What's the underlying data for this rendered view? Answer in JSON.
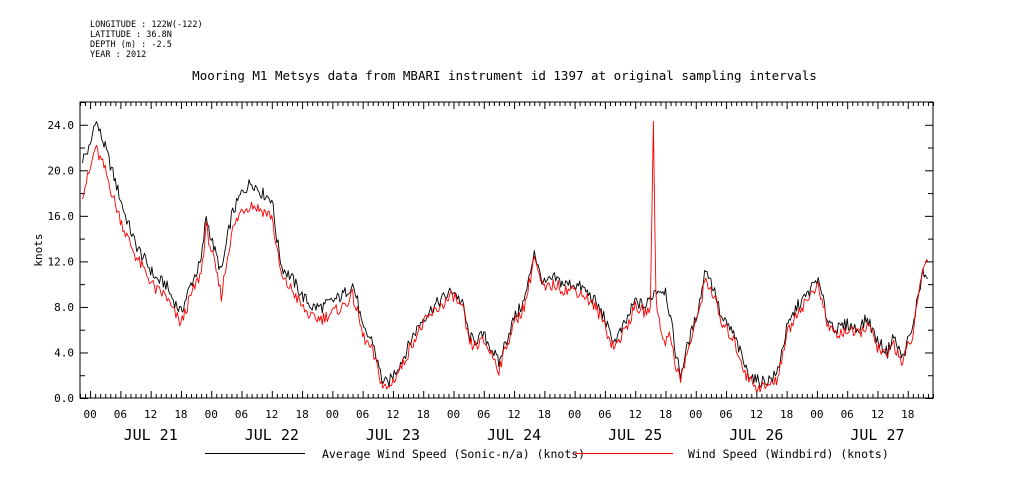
{
  "meta": {
    "longitude": "LONGITUDE : 122W(-122)",
    "latitude": "LATITUDE : 36.8N",
    "depth": "DEPTH (m) : -2.5",
    "year": "YEAR : 2012"
  },
  "chart_data": {
    "type": "line",
    "title": "Mooring M1 Metsys data from MBARI instrument id 1397 at original sampling intervals",
    "ylabel": "knots",
    "xlabel": "",
    "ylim": [
      0,
      26
    ],
    "xlim_hours": [
      -2,
      167
    ],
    "grid": false,
    "legend_position": "bottom",
    "y_ticks": [
      "0.0",
      "4.0",
      "8.0",
      "12.0",
      "16.0",
      "20.0",
      "24.0"
    ],
    "x_tick_labels": [
      "00",
      "06",
      "12",
      "18",
      "00",
      "06",
      "12",
      "18",
      "00",
      "06",
      "12",
      "18",
      "00",
      "06",
      "12",
      "18",
      "00",
      "06",
      "12",
      "18",
      "00",
      "06",
      "12",
      "18",
      "00",
      "06",
      "12",
      "18"
    ],
    "day_labels": [
      "JUL 21",
      "JUL 22",
      "JUL 23",
      "JUL 24",
      "JUL 25",
      "JUL 26",
      "JUL 27"
    ],
    "x_unit": "hours since JUL 21 00:00",
    "series": [
      {
        "name": "Average Wind Speed (Sonic-n/a) (knots)",
        "color": "#000000",
        "points": [
          [
            -1.5,
            21
          ],
          [
            0,
            22
          ],
          [
            1,
            24.5
          ],
          [
            3,
            22
          ],
          [
            5,
            19
          ],
          [
            7,
            16
          ],
          [
            9,
            13.5
          ],
          [
            11,
            12
          ],
          [
            13,
            10.5
          ],
          [
            15,
            10
          ],
          [
            16,
            9
          ],
          [
            18,
            7.5
          ],
          [
            20,
            10
          ],
          [
            22,
            12
          ],
          [
            23,
            16
          ],
          [
            24,
            14
          ],
          [
            26,
            11
          ],
          [
            28,
            16
          ],
          [
            30,
            18
          ],
          [
            32,
            19
          ],
          [
            34,
            18
          ],
          [
            36,
            17.5
          ],
          [
            37,
            14
          ],
          [
            38,
            11.5
          ],
          [
            40,
            10.5
          ],
          [
            42,
            9
          ],
          [
            44,
            8
          ],
          [
            46,
            8
          ],
          [
            48,
            8.5
          ],
          [
            50,
            9
          ],
          [
            52,
            10
          ],
          [
            53,
            8.5
          ],
          [
            54,
            6
          ],
          [
            56,
            5
          ],
          [
            57,
            3
          ],
          [
            58,
            1.5
          ],
          [
            59,
            1.2
          ],
          [
            60,
            2
          ],
          [
            62,
            3.5
          ],
          [
            64,
            5.5
          ],
          [
            66,
            7
          ],
          [
            68,
            8
          ],
          [
            70,
            8.8
          ],
          [
            72,
            9.5
          ],
          [
            74,
            8
          ],
          [
            75,
            5.5
          ],
          [
            76,
            5
          ],
          [
            78,
            5.5
          ],
          [
            80,
            4
          ],
          [
            81,
            3
          ],
          [
            82,
            4.5
          ],
          [
            84,
            7
          ],
          [
            86,
            8.5
          ],
          [
            87,
            10.5
          ],
          [
            88,
            13
          ],
          [
            89,
            11
          ],
          [
            90,
            10
          ],
          [
            92,
            10.5
          ],
          [
            94,
            10
          ],
          [
            96,
            10
          ],
          [
            98,
            9.5
          ],
          [
            100,
            8.5
          ],
          [
            102,
            7
          ],
          [
            103,
            5.5
          ],
          [
            104,
            5
          ],
          [
            106,
            6.5
          ],
          [
            108,
            8.5
          ],
          [
            110,
            8
          ],
          [
            112,
            9.5
          ],
          [
            114,
            9.5
          ],
          [
            115,
            7
          ],
          [
            116,
            4
          ],
          [
            117,
            2
          ],
          [
            118,
            4
          ],
          [
            120,
            7
          ],
          [
            121,
            9
          ],
          [
            122,
            11.5
          ],
          [
            124,
            9
          ],
          [
            125,
            7
          ],
          [
            127,
            6
          ],
          [
            128,
            5
          ],
          [
            130,
            2.5
          ],
          [
            132,
            1.5
          ],
          [
            134,
            1.5
          ],
          [
            136,
            2
          ],
          [
            137,
            4
          ],
          [
            138,
            6
          ],
          [
            140,
            8
          ],
          [
            142,
            9
          ],
          [
            144,
            10.5
          ],
          [
            145,
            9
          ],
          [
            146,
            7
          ],
          [
            148,
            6
          ],
          [
            150,
            6.5
          ],
          [
            152,
            6
          ],
          [
            154,
            7
          ],
          [
            156,
            5
          ],
          [
            158,
            4
          ],
          [
            159,
            5.5
          ],
          [
            160,
            4.5
          ],
          [
            161,
            3.5
          ],
          [
            162,
            5
          ],
          [
            163,
            6
          ],
          [
            164,
            9
          ],
          [
            165,
            11
          ],
          [
            166,
            10.5
          ]
        ]
      },
      {
        "name": "Wind Speed (Windbird) (knots)",
        "color": "#ff0000",
        "points": [
          [
            -1.5,
            18
          ],
          [
            0,
            20
          ],
          [
            1,
            22
          ],
          [
            3,
            20
          ],
          [
            5,
            17
          ],
          [
            7,
            14.5
          ],
          [
            9,
            12.5
          ],
          [
            11,
            11
          ],
          [
            13,
            9.5
          ],
          [
            15,
            9
          ],
          [
            16,
            8
          ],
          [
            18,
            6.5
          ],
          [
            20,
            9
          ],
          [
            22,
            11
          ],
          [
            23,
            15
          ],
          [
            24,
            13
          ],
          [
            26,
            9
          ],
          [
            28,
            14.5
          ],
          [
            30,
            16.5
          ],
          [
            32,
            17
          ],
          [
            34,
            16.5
          ],
          [
            36,
            16
          ],
          [
            37,
            13
          ],
          [
            38,
            10.5
          ],
          [
            40,
            9.5
          ],
          [
            42,
            8
          ],
          [
            44,
            7
          ],
          [
            46,
            7
          ],
          [
            48,
            7.5
          ],
          [
            50,
            8
          ],
          [
            52,
            9
          ],
          [
            53,
            7.5
          ],
          [
            54,
            5.5
          ],
          [
            56,
            4
          ],
          [
            57,
            2.5
          ],
          [
            58,
            1
          ],
          [
            59,
            0.8
          ],
          [
            60,
            1.5
          ],
          [
            62,
            3
          ],
          [
            64,
            5
          ],
          [
            66,
            6.5
          ],
          [
            68,
            7.5
          ],
          [
            70,
            8.3
          ],
          [
            72,
            9
          ],
          [
            74,
            7.5
          ],
          [
            75,
            5
          ],
          [
            76,
            4.5
          ],
          [
            78,
            5
          ],
          [
            80,
            3.5
          ],
          [
            81,
            2.5
          ],
          [
            82,
            4
          ],
          [
            84,
            6.5
          ],
          [
            86,
            8
          ],
          [
            87,
            10
          ],
          [
            88,
            12.5
          ],
          [
            89,
            10.5
          ],
          [
            90,
            9.5
          ],
          [
            92,
            10
          ],
          [
            94,
            9.5
          ],
          [
            96,
            9.5
          ],
          [
            98,
            9
          ],
          [
            100,
            8
          ],
          [
            102,
            6.5
          ],
          [
            103,
            5
          ],
          [
            104,
            4.5
          ],
          [
            106,
            6
          ],
          [
            108,
            8
          ],
          [
            110,
            7.5
          ],
          [
            111,
            8
          ],
          [
            111.6,
            24.3
          ],
          [
            112.1,
            9
          ],
          [
            113,
            6
          ],
          [
            114,
            5
          ],
          [
            115,
            5.5
          ],
          [
            116,
            3
          ],
          [
            117,
            1.5
          ],
          [
            118,
            3.5
          ],
          [
            120,
            6.5
          ],
          [
            121,
            8.5
          ],
          [
            122,
            10.5
          ],
          [
            124,
            8.5
          ],
          [
            125,
            6.5
          ],
          [
            127,
            5.5
          ],
          [
            128,
            4.5
          ],
          [
            130,
            2
          ],
          [
            132,
            1
          ],
          [
            134,
            1
          ],
          [
            136,
            1.5
          ],
          [
            137,
            3.5
          ],
          [
            138,
            5.5
          ],
          [
            140,
            7.5
          ],
          [
            142,
            8.5
          ],
          [
            144,
            10
          ],
          [
            145,
            8.5
          ],
          [
            146,
            6.5
          ],
          [
            148,
            5.5
          ],
          [
            150,
            6
          ],
          [
            152,
            5.5
          ],
          [
            154,
            6.5
          ],
          [
            156,
            4.5
          ],
          [
            158,
            3.5
          ],
          [
            159,
            5
          ],
          [
            160,
            4
          ],
          [
            161,
            3
          ],
          [
            162,
            4.5
          ],
          [
            163,
            5.5
          ],
          [
            164,
            8.5
          ],
          [
            165,
            11.5
          ],
          [
            166,
            12
          ]
        ]
      }
    ]
  }
}
